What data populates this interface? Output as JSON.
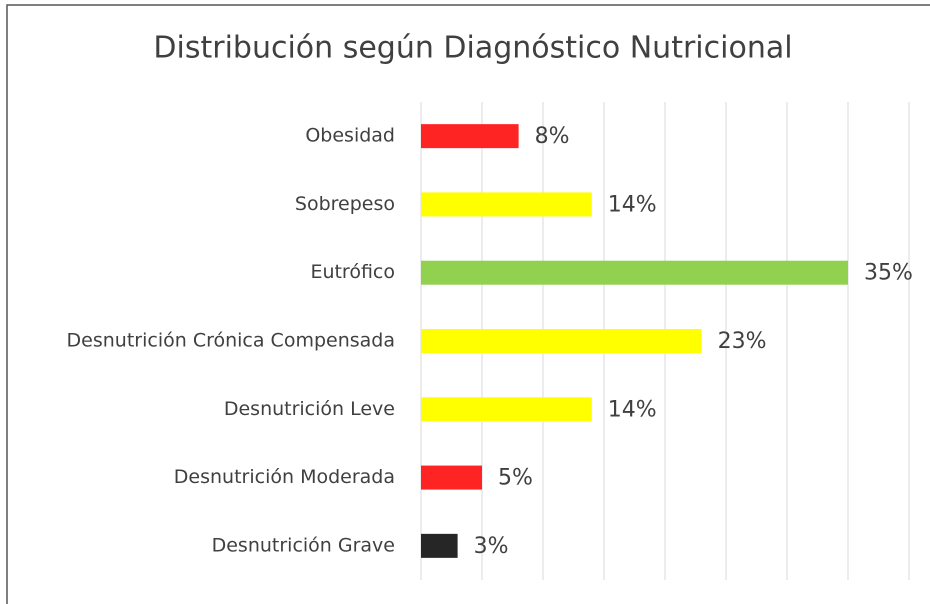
{
  "chart_data": {
    "type": "barh",
    "title": "Distribución según Diagnóstico Nutricional",
    "categories": [
      "Obesidad",
      "Sobrepeso",
      "Eutrófico",
      "Desnutrición Crónica Compensada",
      "Desnutrición Leve",
      "Desnutrición Moderada",
      "Desnutrición Grave"
    ],
    "values": [
      8,
      14,
      35,
      23,
      14,
      5,
      3
    ],
    "value_labels": [
      "8%",
      "14%",
      "35%",
      "23%",
      "14%",
      "5%",
      "3%"
    ],
    "colors": [
      "#ff2424",
      "#ffff00",
      "#92d050",
      "#ffff00",
      "#ffff00",
      "#ff2424",
      "#262626"
    ],
    "xlim": [
      0,
      40
    ],
    "xticks": [
      0,
      5,
      10,
      15,
      20,
      25,
      30,
      35,
      40
    ],
    "grid": true
  }
}
